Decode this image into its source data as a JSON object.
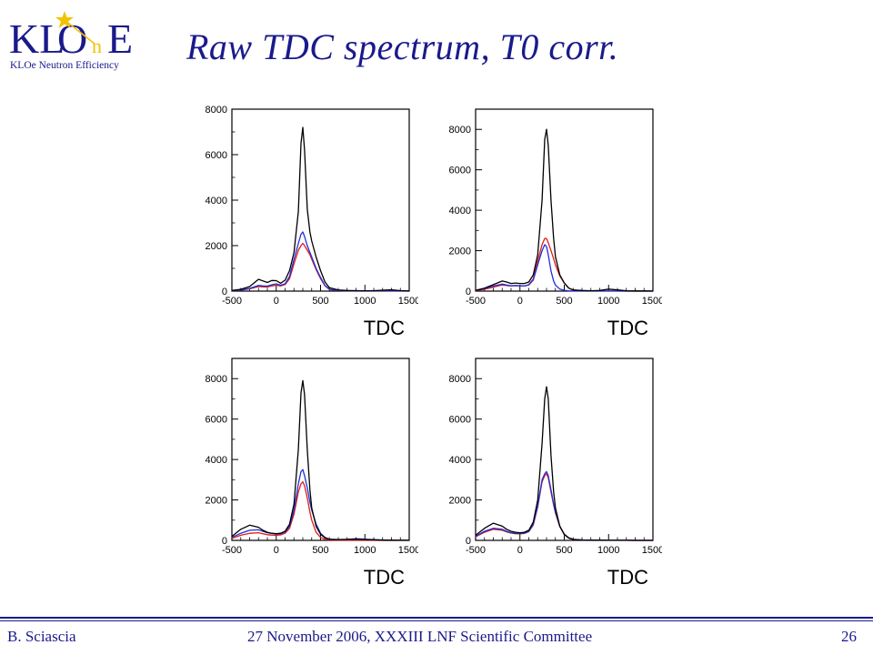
{
  "logo": {
    "letters_left": "KL",
    "letter_o": "O",
    "letter_n": "n",
    "letter_e": "E",
    "subtitle": "KLOe Neutron Efficiency",
    "icon": "star-icon"
  },
  "title": "Raw TDC spectrum, T0 corr.",
  "colors": {
    "title": "#1a1a8c",
    "series_black": "#000000",
    "series_blue": "#1f2fd6",
    "series_red": "#e01b1b",
    "logo_gold": "#f2c200"
  },
  "footer": {
    "author": "B. Sciascia",
    "event": "27 November 2006,  XXXIII LNF Scientific Committee",
    "page": "26"
  },
  "chart_data": [
    {
      "type": "line",
      "xlabel": "TDC",
      "xlim": [
        -500,
        1500
      ],
      "ylim": [
        0,
        8000
      ],
      "xticks": [
        -500,
        0,
        500,
        1000,
        1500
      ],
      "yticks": [
        0,
        2000,
        4000,
        6000,
        8000
      ],
      "x": [
        -500,
        -400,
        -300,
        -200,
        -150,
        -100,
        -50,
        0,
        50,
        100,
        150,
        200,
        250,
        280,
        300,
        320,
        350,
        380,
        400,
        450,
        500,
        550,
        600,
        700,
        800,
        900,
        1000,
        1100,
        1200,
        1300,
        1400,
        1500
      ],
      "series": [
        {
          "color": "black",
          "values": [
            30,
            80,
            200,
            520,
            450,
            380,
            470,
            460,
            350,
            480,
            900,
            1700,
            3500,
            6500,
            7200,
            6200,
            3600,
            2600,
            2200,
            1500,
            900,
            400,
            150,
            50,
            30,
            20,
            15,
            20,
            40,
            60,
            20,
            10
          ]
        },
        {
          "color": "blue",
          "values": [
            20,
            50,
            120,
            250,
            230,
            220,
            280,
            320,
            260,
            320,
            650,
            1400,
            2100,
            2500,
            2600,
            2400,
            2000,
            1700,
            1500,
            1000,
            600,
            250,
            80,
            25,
            15,
            10,
            8,
            10,
            15,
            20,
            10,
            5
          ]
        },
        {
          "color": "red",
          "values": [
            15,
            40,
            100,
            200,
            190,
            180,
            230,
            260,
            230,
            290,
            550,
            1200,
            1800,
            2000,
            2100,
            2000,
            1800,
            1600,
            1400,
            950,
            550,
            230,
            70,
            20,
            12,
            8,
            6,
            8,
            12,
            15,
            8,
            4
          ]
        }
      ]
    },
    {
      "type": "line",
      "xlabel": "TDC",
      "xlim": [
        -500,
        1500
      ],
      "ylim": [
        0,
        9000
      ],
      "xticks": [
        -500,
        0,
        500,
        1000,
        1500
      ],
      "yticks": [
        0,
        2000,
        4000,
        6000,
        8000
      ],
      "x": [
        -500,
        -400,
        -300,
        -200,
        -150,
        -100,
        -50,
        0,
        50,
        100,
        150,
        200,
        250,
        280,
        300,
        320,
        350,
        380,
        400,
        450,
        500,
        550,
        600,
        700,
        800,
        900,
        1000,
        1100,
        1200,
        1300,
        1400,
        1500
      ],
      "series": [
        {
          "color": "black",
          "values": [
            40,
            150,
            320,
            500,
            450,
            380,
            400,
            380,
            380,
            450,
            800,
            1800,
            4500,
            7500,
            8000,
            7200,
            4500,
            2600,
            1700,
            800,
            400,
            150,
            60,
            30,
            20,
            30,
            100,
            60,
            20,
            10,
            10,
            5
          ]
        },
        {
          "color": "blue",
          "values": [
            30,
            120,
            250,
            350,
            300,
            260,
            280,
            260,
            250,
            300,
            550,
            1300,
            2000,
            2300,
            2200,
            1800,
            1000,
            500,
            300,
            100,
            40,
            15,
            8,
            5,
            3,
            3,
            5,
            3,
            2,
            2,
            2,
            1
          ]
        },
        {
          "color": "red",
          "values": [
            20,
            90,
            200,
            300,
            280,
            250,
            270,
            260,
            250,
            320,
            600,
            1500,
            2300,
            2600,
            2600,
            2400,
            2000,
            1600,
            1300,
            750,
            400,
            150,
            50,
            15,
            8,
            5,
            5,
            4,
            3,
            2,
            2,
            1
          ]
        }
      ]
    },
    {
      "type": "line",
      "xlabel": "TDC",
      "xlim": [
        -500,
        1500
      ],
      "ylim": [
        0,
        9000
      ],
      "xticks": [
        -500,
        0,
        500,
        1000,
        1500
      ],
      "yticks": [
        0,
        2000,
        4000,
        6000,
        8000
      ],
      "x": [
        -500,
        -400,
        -300,
        -200,
        -150,
        -100,
        -50,
        0,
        50,
        100,
        150,
        200,
        250,
        280,
        300,
        320,
        350,
        380,
        400,
        450,
        500,
        550,
        600,
        700,
        800,
        900,
        1000,
        1100,
        1200,
        1300,
        1400,
        1500
      ],
      "series": [
        {
          "color": "black",
          "values": [
            200,
            550,
            750,
            650,
            500,
            400,
            350,
            330,
            350,
            450,
            800,
            1800,
            4500,
            7300,
            7900,
            7200,
            4500,
            2500,
            1600,
            700,
            300,
            120,
            50,
            40,
            50,
            60,
            40,
            30,
            20,
            10,
            5,
            3
          ]
        },
        {
          "color": "blue",
          "values": [
            150,
            350,
            500,
            520,
            450,
            380,
            340,
            320,
            330,
            420,
            700,
            1500,
            2800,
            3400,
            3500,
            3200,
            2600,
            1900,
            1500,
            800,
            350,
            150,
            60,
            40,
            50,
            80,
            60,
            30,
            20,
            10,
            5,
            3
          ]
        },
        {
          "color": "red",
          "values": [
            100,
            250,
            350,
            380,
            330,
            280,
            260,
            250,
            270,
            350,
            600,
            1300,
            2400,
            2800,
            2900,
            2700,
            2100,
            1400,
            1000,
            400,
            150,
            50,
            20,
            10,
            8,
            6,
            4,
            3,
            2,
            2,
            1,
            1
          ]
        }
      ]
    },
    {
      "type": "line",
      "xlabel": "TDC",
      "xlim": [
        -500,
        1500
      ],
      "ylim": [
        0,
        9000
      ],
      "xticks": [
        -500,
        0,
        500,
        1000,
        1500
      ],
      "yticks": [
        0,
        2000,
        4000,
        6000,
        8000
      ],
      "x": [
        -500,
        -400,
        -300,
        -200,
        -150,
        -100,
        -50,
        0,
        50,
        100,
        150,
        200,
        250,
        280,
        300,
        320,
        350,
        380,
        400,
        450,
        500,
        550,
        600,
        700,
        800,
        900,
        1000,
        1100,
        1200,
        1300,
        1400,
        1500
      ],
      "series": [
        {
          "color": "black",
          "values": [
            250,
            600,
            850,
            700,
            550,
            450,
            400,
            380,
            400,
            500,
            900,
            2000,
            4800,
            7000,
            7600,
            7000,
            4200,
            2400,
            1600,
            700,
            300,
            120,
            50,
            20,
            10,
            8,
            5,
            4,
            3,
            2,
            2,
            1
          ]
        },
        {
          "color": "blue",
          "values": [
            200,
            450,
            600,
            550,
            450,
            380,
            350,
            340,
            360,
            450,
            800,
            1700,
            3000,
            3300,
            3400,
            3200,
            2500,
            1800,
            1400,
            700,
            300,
            120,
            50,
            20,
            10,
            8,
            5,
            4,
            3,
            2,
            2,
            1
          ]
        },
        {
          "color": "red",
          "values": [
            180,
            400,
            550,
            500,
            420,
            360,
            330,
            320,
            340,
            430,
            760,
            1650,
            2900,
            3200,
            3300,
            3100,
            2400,
            1750,
            1350,
            680,
            290,
            110,
            45,
            18,
            9,
            7,
            5,
            4,
            3,
            2,
            2,
            1
          ]
        }
      ]
    }
  ]
}
